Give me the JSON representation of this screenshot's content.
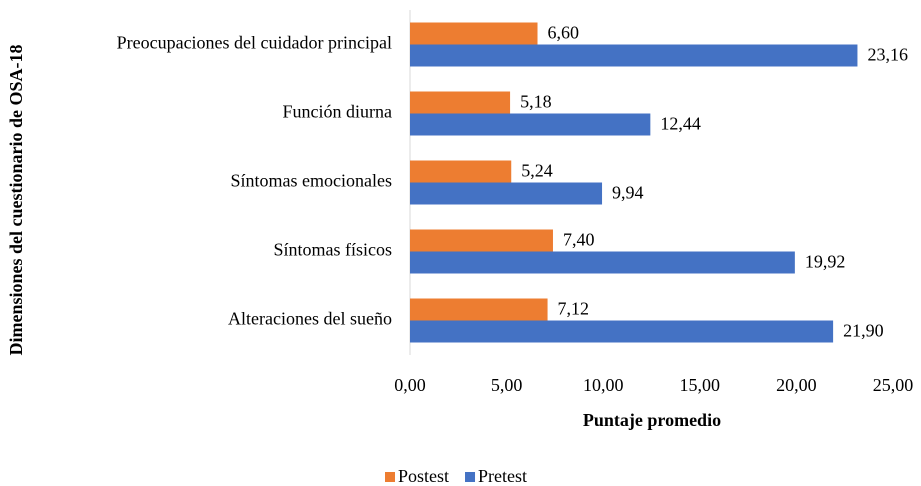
{
  "chart_data": {
    "type": "barh",
    "xlabel": "Puntaje promedio",
    "ylabel": "Dimensiones del cuestionario de OSA-18",
    "categories": [
      "Preocupaciones del cuidador principal",
      "Función diurna",
      "Síntomas emocionales",
      "Síntomas físicos",
      "Alteraciones del sueño"
    ],
    "series": [
      {
        "name": "Postest",
        "color": "#ED7D31",
        "values": [
          6.6,
          5.18,
          5.24,
          7.4,
          7.12
        ],
        "value_labels": [
          "6,60",
          "5,18",
          "5,24",
          "7,40",
          "7,12"
        ]
      },
      {
        "name": "Pretest",
        "color": "#4472C4",
        "values": [
          23.16,
          12.44,
          9.94,
          19.92,
          21.9
        ],
        "value_labels": [
          "23,16",
          "12,44",
          "9,94",
          "19,92",
          "21,90"
        ]
      }
    ],
    "xlim": [
      0,
      25
    ],
    "xticks": [
      {
        "value": 0,
        "label": "0,00"
      },
      {
        "value": 5,
        "label": "5,00"
      },
      {
        "value": 10,
        "label": "10,00"
      },
      {
        "value": 15,
        "label": "15,00"
      },
      {
        "value": 20,
        "label": "20,00"
      },
      {
        "value": 25,
        "label": "25,00"
      }
    ],
    "legend": "bottom"
  }
}
